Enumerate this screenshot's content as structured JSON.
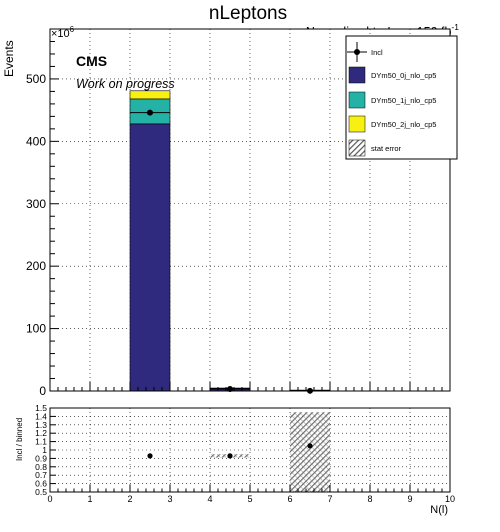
{
  "header": {
    "title": "nLeptons",
    "normalization_prefix": "Normalized to ",
    "lumi_symbol": "L",
    "lumi_subscript": "int",
    "lumi_suffix": " = 150 fb",
    "lumi_exponent": "-1"
  },
  "cms_label": "CMS",
  "cms_sublabel": "Work on progress",
  "chart_data": [
    {
      "type": "bar",
      "stacked": true,
      "xlabel": "N(l)",
      "ylabel": "Events",
      "y_scale_label": "×10",
      "y_scale_exponent": "6",
      "xlim": [
        0,
        10
      ],
      "ylim": [
        0,
        580
      ],
      "x_ticks": [
        "0",
        "1",
        "2",
        "3",
        "4",
        "5",
        "6",
        "7",
        "8",
        "9",
        "10"
      ],
      "y_ticks": [
        "0",
        "100",
        "200",
        "300",
        "400",
        "500"
      ],
      "grid": true,
      "legend_placement": "top-right",
      "bin_edges": [
        [
          2,
          3
        ],
        [
          4,
          5
        ],
        [
          6,
          7
        ]
      ],
      "series": [
        {
          "name": "DYm50_0j_nlo_cp5",
          "color": "#302a7e",
          "values": [
            428,
            3.0,
            0.3
          ]
        },
        {
          "name": "DYm50_1j_nlo_cp5",
          "color": "#25b2a6",
          "values": [
            40,
            0.8,
            0.1
          ]
        },
        {
          "name": "DYm50_2j_nlo_cp5",
          "color": "#f7f012",
          "values": [
            13,
            0.2,
            0.05
          ]
        }
      ],
      "data": {
        "name": "Incl",
        "x": [
          2.5,
          4.5,
          6.5
        ],
        "y": [
          446,
          3.2,
          0.3
        ]
      },
      "stat_error_label": "stat error"
    },
    {
      "type": "scatter",
      "xlabel": "N(l)",
      "ylabel": "Incl / binned",
      "xlim": [
        0,
        10
      ],
      "ylim": [
        0.5,
        1.5
      ],
      "y_ticks": [
        "0.5",
        "0.6",
        "0.7",
        "0.8",
        "0.9",
        "1",
        "1.1",
        "1.2",
        "1.3",
        "1.4",
        "1.5"
      ],
      "grid": true,
      "points": {
        "x": [
          2.5,
          4.5,
          6.5
        ],
        "y": [
          0.93,
          0.93,
          1.05
        ]
      },
      "error_bands": [
        {
          "x": [
            4.0,
            5.0
          ],
          "y": [
            0.91,
            0.95
          ]
        },
        {
          "x": [
            6.0,
            7.0
          ],
          "y": [
            0.5,
            1.45
          ]
        }
      ]
    }
  ]
}
